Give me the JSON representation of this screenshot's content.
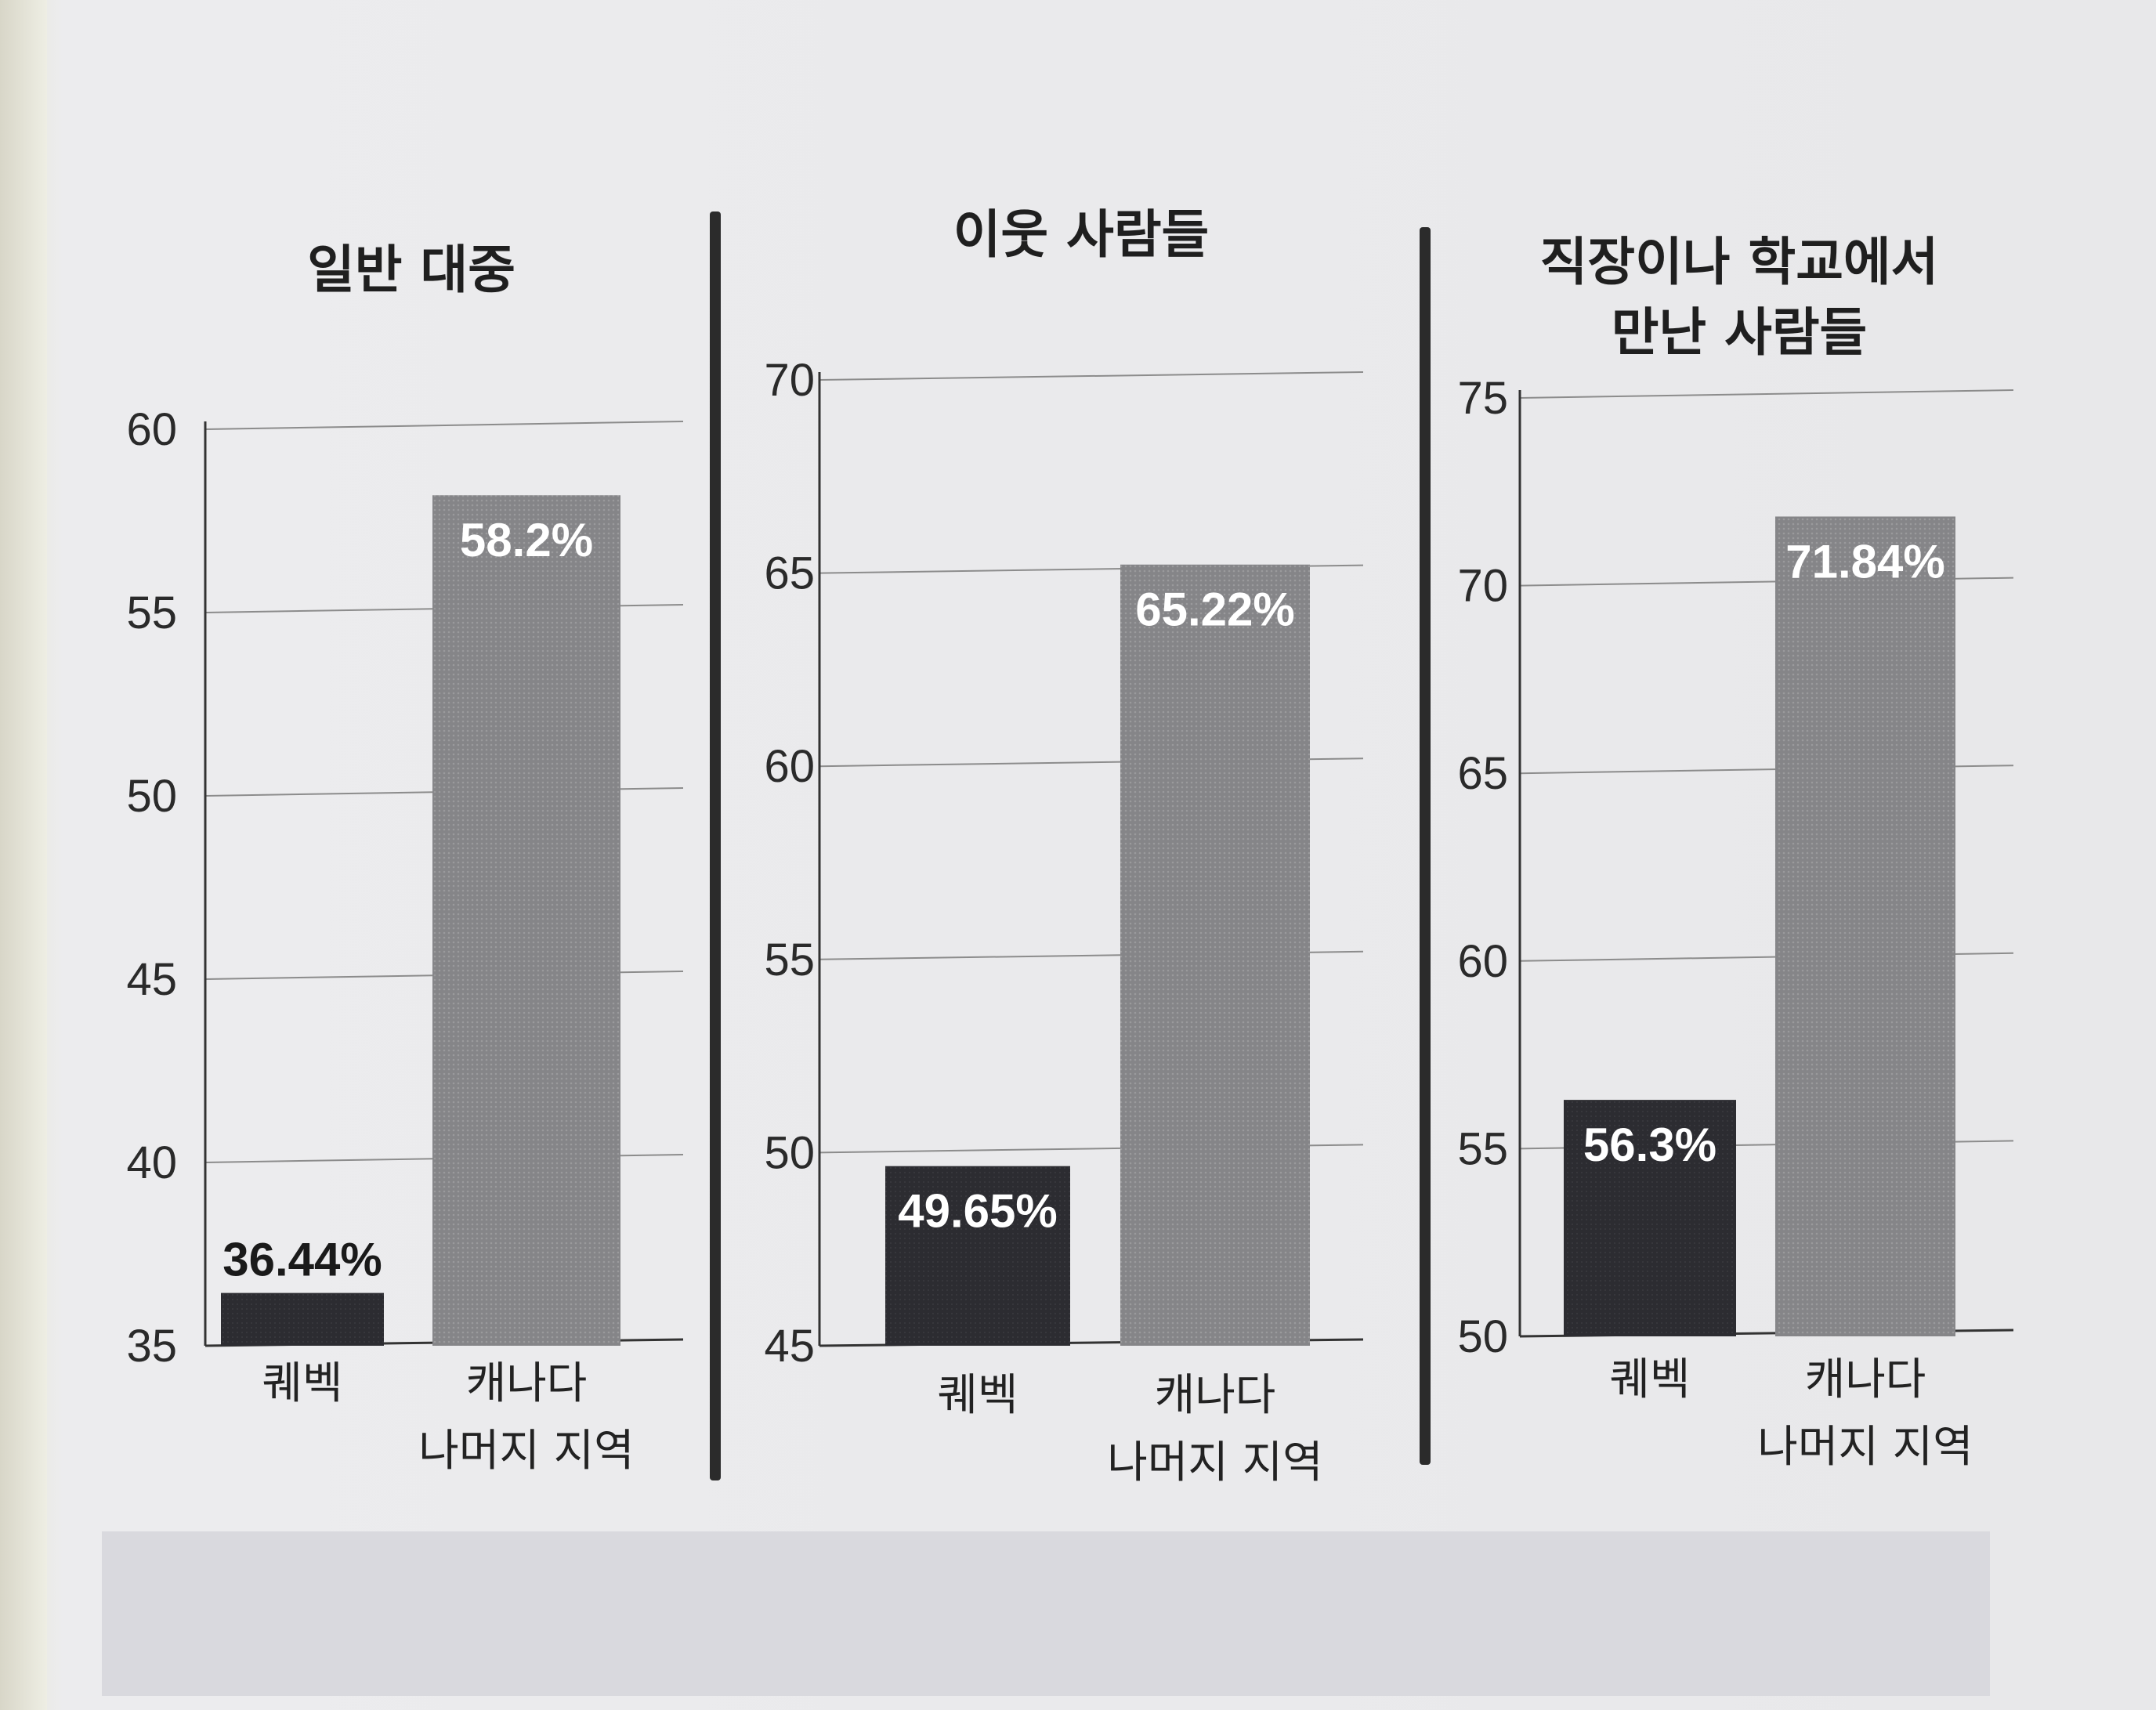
{
  "chart_data": [
    {
      "type": "bar",
      "title": "일반 대중",
      "categories": [
        "퀘벡",
        "캐나다\n나머지 지역"
      ],
      "values": [
        36.44,
        58.2
      ],
      "value_labels": [
        "36.44%",
        "58.2%"
      ],
      "ylim": [
        35,
        60
      ],
      "yticks": [
        35,
        40,
        45,
        50,
        55,
        60
      ],
      "grid": true,
      "colors": [
        "#2b2b30",
        "#8a8a8c"
      ]
    },
    {
      "type": "bar",
      "title": "이웃 사람들",
      "categories": [
        "퀘벡",
        "캐나다\n나머지 지역"
      ],
      "values": [
        49.65,
        65.22
      ],
      "value_labels": [
        "49.65%",
        "65.22%"
      ],
      "ylim": [
        45,
        70
      ],
      "yticks": [
        45,
        50,
        55,
        60,
        65,
        70
      ],
      "grid": true,
      "colors": [
        "#2b2b30",
        "#8a8a8c"
      ]
    },
    {
      "type": "bar",
      "title": "직장이나 학교에서\n만난 사람들",
      "categories": [
        "퀘벡",
        "캐나다\n나머지 지역"
      ],
      "values": [
        56.3,
        71.84
      ],
      "value_labels": [
        "56.3%",
        "71.84%"
      ],
      "ylim": [
        50,
        75
      ],
      "yticks": [
        50,
        55,
        60,
        65,
        70,
        75
      ],
      "grid": true,
      "colors": [
        "#2b2b30",
        "#8a8a8c"
      ]
    }
  ]
}
